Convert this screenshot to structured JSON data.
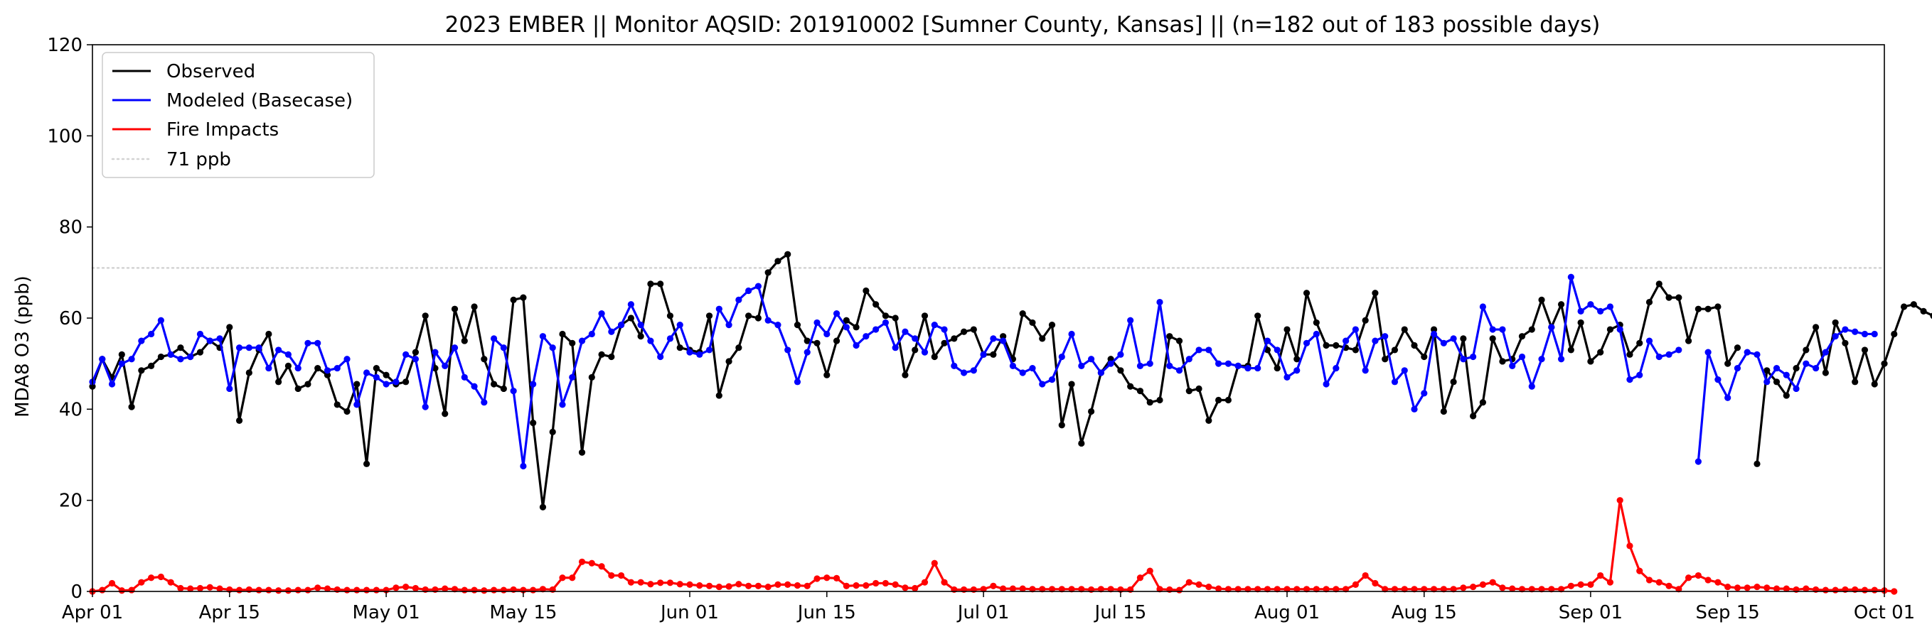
{
  "chart_data": {
    "type": "line",
    "title": "2023 EMBER || Monitor AQSID: 201910002 [Sumner County, Kansas] || (n=182 out of 183 possible days)",
    "xlabel": "",
    "ylabel": "MDA8 O3 (ppb)",
    "ylim": [
      0,
      120
    ],
    "yticks": [
      0,
      20,
      40,
      60,
      80,
      100,
      120
    ],
    "start_date": "2023-04-01",
    "xlim_days": [
      0,
      183
    ],
    "xticks": [
      {
        "label": "Apr 01",
        "day": 0
      },
      {
        "label": "Apr 15",
        "day": 14
      },
      {
        "label": "May 01",
        "day": 30
      },
      {
        "label": "May 15",
        "day": 44
      },
      {
        "label": "Jun 01",
        "day": 61
      },
      {
        "label": "Jun 15",
        "day": 75
      },
      {
        "label": "Jul 01",
        "day": 91
      },
      {
        "label": "Jul 15",
        "day": 105
      },
      {
        "label": "Aug 01",
        "day": 122
      },
      {
        "label": "Aug 15",
        "day": 136
      },
      {
        "label": "Sep 01",
        "day": 153
      },
      {
        "label": "Sep 15",
        "day": 167
      },
      {
        "label": "Oct 01",
        "day": 183
      }
    ],
    "reference_line": {
      "label": "71 ppb",
      "value": 71,
      "color": "#d3d3d3",
      "style": "dotted"
    },
    "legend_position": "upper-left",
    "series": [
      {
        "name": "Observed",
        "color": "#000000",
        "values": [
          45,
          51,
          47,
          52,
          40.5,
          48.5,
          49.5,
          51.5,
          52,
          53.5,
          51.5,
          52.5,
          55,
          53.5,
          58,
          37.5,
          48,
          53,
          56.5,
          46,
          49.5,
          44.5,
          45.5,
          49,
          47.5,
          41,
          39.5,
          45.5,
          28,
          49,
          47.5,
          45.5,
          46,
          52.5,
          60.5,
          49,
          39,
          62,
          55,
          62.5,
          51,
          45.5,
          44.5,
          64,
          64.5,
          37,
          18.5,
          35,
          56.5,
          54.5,
          30.5,
          47,
          52,
          51.5,
          58.5,
          60,
          56,
          67.5,
          67.5,
          60.5,
          53.5,
          53,
          52.5,
          60.5,
          43,
          50.5,
          53.5,
          60.5,
          60,
          70,
          72.5,
          74,
          58.5,
          55,
          54.5,
          47.5,
          55,
          59.5,
          58,
          66,
          63,
          60.5,
          60,
          47.5,
          53,
          60.5,
          51.5,
          54.5,
          55.5,
          57,
          57.5,
          52,
          52,
          56,
          51,
          61,
          59,
          55.5,
          58.5,
          36.5,
          45.5,
          32.5,
          39.5,
          48,
          51,
          48.5,
          45,
          44,
          41.5,
          42,
          56,
          55,
          44,
          44.5,
          37.5,
          42,
          42,
          49.5,
          49.5,
          60.5,
          53,
          49,
          57.5,
          51,
          65.5,
          59,
          54,
          54,
          53.5,
          53,
          59.5,
          65.5,
          51,
          53,
          57.5,
          54,
          51.5,
          57.5,
          39.5,
          46,
          55.5,
          38.5,
          41.5,
          55.5,
          50.5,
          51,
          56,
          57.5,
          64,
          58,
          63,
          53,
          59,
          50.5,
          52.5,
          57.5,
          58.5,
          52,
          54.5,
          63.5,
          67.5,
          64.5,
          64.5,
          55,
          62,
          62,
          62.5,
          50,
          53.5,
          null,
          28,
          48.5,
          46,
          43,
          49,
          53,
          58,
          48,
          59,
          54.5,
          46,
          53,
          45.5,
          50,
          56.5,
          62.5,
          63,
          61.5,
          60.5
        ]
      },
      {
        "name": "Modeled (Basecase)",
        "color": "#0000ff",
        "values": [
          46,
          51,
          45.5,
          50,
          51,
          55,
          56.5,
          59.5,
          52,
          51,
          51.5,
          56.5,
          55,
          55.5,
          44.5,
          53.5,
          53.5,
          53.5,
          49,
          53,
          52,
          49,
          54.5,
          54.5,
          48.5,
          49,
          51,
          41,
          48,
          47,
          45.5,
          46,
          52,
          51,
          40.5,
          52.5,
          49.5,
          53.5,
          47,
          45,
          41.5,
          55.5,
          53.5,
          44,
          27.5,
          45.5,
          56,
          53.5,
          41,
          47,
          55,
          56.5,
          61,
          57,
          58.5,
          63,
          58.5,
          55,
          51.5,
          55.5,
          58.5,
          52.5,
          52,
          53,
          62,
          58.5,
          64,
          66,
          67,
          59.5,
          58.5,
          53,
          46,
          52.5,
          59,
          56.5,
          61,
          58,
          54,
          56,
          57.5,
          59,
          53.5,
          57,
          55.5,
          52.5,
          58.5,
          57.5,
          49.5,
          48,
          48.5,
          52,
          55.5,
          55,
          49.5,
          48,
          49,
          45.5,
          46.5,
          51.5,
          56.5,
          49.5,
          51,
          48,
          50,
          52,
          59.5,
          49.5,
          50,
          63.5,
          49.5,
          48.5,
          51,
          53,
          53,
          50,
          50,
          49.5,
          49,
          49,
          55,
          53,
          47,
          48.5,
          54.5,
          56.5,
          45.5,
          49,
          55,
          57.5,
          48.5,
          55,
          56,
          46,
          48.5,
          40,
          43.5,
          56.5,
          54.5,
          55.5,
          51,
          51.5,
          62.5,
          57.5,
          57.5,
          49.5,
          51.5,
          45,
          51,
          58,
          51,
          69,
          61.5,
          63,
          61.5,
          62.5,
          57.5,
          46.5,
          47.5,
          55,
          51.5,
          52,
          53,
          null,
          28.5,
          52.5,
          46.5,
          42.5,
          49,
          52.5,
          52,
          46,
          49,
          47.5,
          44.5,
          50,
          49,
          52.5,
          56,
          57.5,
          57,
          56.5,
          56.5
        ]
      },
      {
        "name": "Fire Impacts",
        "color": "#ff0000",
        "values": [
          0,
          0.3,
          1.8,
          0.2,
          0.3,
          2,
          3,
          3.2,
          2,
          0.7,
          0.6,
          0.7,
          0.9,
          0.6,
          0.4,
          0.3,
          0.4,
          0.3,
          0.3,
          0.2,
          0.2,
          0.3,
          0.3,
          0.8,
          0.6,
          0.4,
          0.3,
          0.3,
          0.3,
          0.3,
          0.3,
          0.8,
          1,
          0.7,
          0.4,
          0.4,
          0.6,
          0.5,
          0.3,
          0.3,
          0.2,
          0.3,
          0.3,
          0.4,
          0.3,
          0.3,
          0.5,
          0.4,
          3,
          3,
          6.5,
          6.2,
          5.5,
          3.5,
          3.5,
          2,
          2,
          1.6,
          1.9,
          1.9,
          1.6,
          1.5,
          1.3,
          1.2,
          1,
          1.1,
          1.6,
          1.2,
          1.2,
          1,
          1.5,
          1.5,
          1.3,
          1.2,
          2.8,
          3,
          2.9,
          1.2,
          1.3,
          1.3,
          1.8,
          1.8,
          1.5,
          0.8,
          0.7,
          2,
          6.2,
          2,
          0.4,
          0.4,
          0.4,
          0.5,
          1.2,
          0.6,
          0.6,
          0.6,
          0.5,
          0.5,
          0.5,
          0.5,
          0.5,
          0.5,
          0.4,
          0.5,
          0.5,
          0.4,
          0.4,
          3,
          4.5,
          0.5,
          0.4,
          0.3,
          2,
          1.5,
          1,
          0.6,
          0.5,
          0.5,
          0.5,
          0.5,
          0.5,
          0.5,
          0.5,
          0.5,
          0.5,
          0.5,
          0.5,
          0.5,
          0.5,
          1.5,
          3.5,
          1.8,
          0.5,
          0.5,
          0.5,
          0.5,
          0.5,
          0.5,
          0.5,
          0.5,
          0.8,
          1,
          1.5,
          2,
          0.8,
          0.6,
          0.5,
          0.5,
          0.5,
          0.5,
          0.5,
          1.2,
          1.5,
          1.5,
          3.5,
          2,
          20,
          10,
          4.5,
          2.5,
          2,
          1.2,
          0.5,
          3,
          3.5,
          2.5,
          2,
          1,
          0.8,
          0.8,
          1,
          0.8,
          0.6,
          0.6,
          0.4,
          0.6,
          0.4,
          0.3,
          0.3,
          0.4,
          0.4,
          0.3,
          0.3,
          0.2,
          0
        ]
      }
    ]
  }
}
